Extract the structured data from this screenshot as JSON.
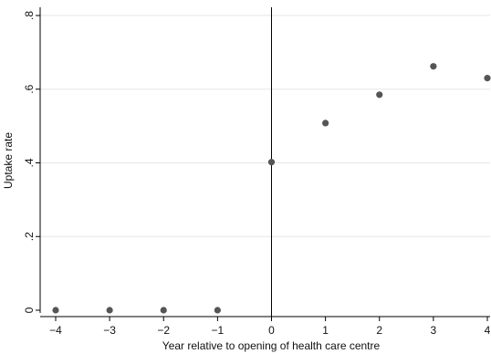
{
  "chart_data": {
    "type": "scatter",
    "xlabel": "Year relative to opening of health care centre",
    "ylabel": "Uptake rate",
    "xlim": [
      -4,
      4
    ],
    "ylim": [
      0,
      0.8
    ],
    "x_ticks": [
      -4,
      -3,
      -2,
      -1,
      0,
      1,
      2,
      3,
      4
    ],
    "x_tick_labels": [
      "−4",
      "−3",
      "−2",
      "−1",
      "0",
      "1",
      "2",
      "3",
      "4"
    ],
    "y_ticks": [
      0,
      0.2,
      0.4,
      0.6,
      0.8
    ],
    "y_tick_labels": [
      "0",
      ".2",
      ".4",
      ".6",
      ".8"
    ],
    "grid": true,
    "reference_line_x": 0,
    "points": [
      {
        "x": -4,
        "y": 0.0
      },
      {
        "x": -3,
        "y": 0.0
      },
      {
        "x": -2,
        "y": 0.0
      },
      {
        "x": -1,
        "y": 0.0
      },
      {
        "x": 0,
        "y": 0.402
      },
      {
        "x": 1,
        "y": 0.508
      },
      {
        "x": 2,
        "y": 0.585
      },
      {
        "x": 3,
        "y": 0.662
      },
      {
        "x": 4,
        "y": 0.63
      }
    ],
    "colors": {
      "marker": "#555555",
      "grid": "#e6e6e6",
      "axis": "#000000"
    }
  }
}
